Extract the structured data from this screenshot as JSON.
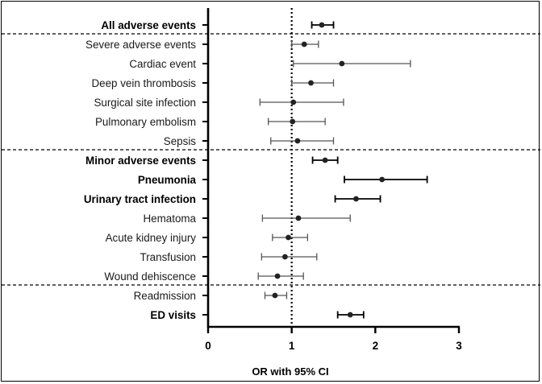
{
  "chart_data": {
    "type": "forest",
    "title": "",
    "xlabel": "OR with 95% CI",
    "ylabel": "",
    "xlim": [
      0,
      3
    ],
    "xticks": [
      "0",
      "1",
      "2",
      "3"
    ],
    "reference_line": 1,
    "rows": [
      {
        "label": "All adverse events",
        "or": 1.36,
        "lo": 1.24,
        "hi": 1.5,
        "bold": true
      },
      {
        "label": "Severe adverse events",
        "or": 1.15,
        "lo": 1.0,
        "hi": 1.32,
        "bold": false
      },
      {
        "label": "Cardiac event",
        "or": 1.6,
        "lo": 1.02,
        "hi": 2.42,
        "bold": false
      },
      {
        "label": "Deep vein thrombosis",
        "or": 1.23,
        "lo": 1.0,
        "hi": 1.5,
        "bold": false
      },
      {
        "label": "Surgical site infection",
        "or": 1.02,
        "lo": 0.62,
        "hi": 1.62,
        "bold": false
      },
      {
        "label": "Pulmonary embolism",
        "or": 1.01,
        "lo": 0.72,
        "hi": 1.4,
        "bold": false
      },
      {
        "label": "Sepsis",
        "or": 1.07,
        "lo": 0.75,
        "hi": 1.5,
        "bold": false
      },
      {
        "label": "Minor adverse events",
        "or": 1.4,
        "lo": 1.25,
        "hi": 1.55,
        "bold": true
      },
      {
        "label": "Pneumonia",
        "or": 2.08,
        "lo": 1.63,
        "hi": 2.62,
        "bold": true
      },
      {
        "label": "Urinary tract infection",
        "or": 1.77,
        "lo": 1.52,
        "hi": 2.06,
        "bold": true
      },
      {
        "label": "Hematoma",
        "or": 1.08,
        "lo": 0.65,
        "hi": 1.7,
        "bold": false
      },
      {
        "label": "Acute kidney injury",
        "or": 0.96,
        "lo": 0.77,
        "hi": 1.19,
        "bold": false
      },
      {
        "label": "Transfusion",
        "or": 0.92,
        "lo": 0.64,
        "hi": 1.3,
        "bold": false
      },
      {
        "label": "Wound dehiscence",
        "or": 0.83,
        "lo": 0.6,
        "hi": 1.14,
        "bold": false
      },
      {
        "label": "Readmission",
        "or": 0.8,
        "lo": 0.68,
        "hi": 0.94,
        "bold": false
      },
      {
        "label": "ED visits",
        "or": 1.7,
        "lo": 1.55,
        "hi": 1.86,
        "bold": true
      }
    ],
    "group_separators_after_row": [
      0,
      6,
      13
    ],
    "colors": {
      "point": "#222222",
      "axis": "#000000",
      "bold_ci": "#000000",
      "normal_ci": "#555555"
    }
  }
}
